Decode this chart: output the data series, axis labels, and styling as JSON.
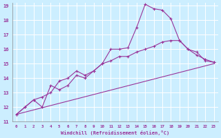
{
  "background_color": "#cceeff",
  "grid_color": "#aaddcc",
  "line_color": "#993399",
  "marker_color": "#993399",
  "xlabel": "Windchill (Refroidissement éolien,°C)",
  "xlim": [
    -0.5,
    23.5
  ],
  "ylim": [
    11,
    19.2
  ],
  "yticks": [
    11,
    12,
    13,
    14,
    15,
    16,
    17,
    18,
    19
  ],
  "xticks": [
    0,
    1,
    2,
    3,
    4,
    5,
    6,
    7,
    8,
    9,
    10,
    11,
    12,
    13,
    14,
    15,
    16,
    17,
    18,
    19,
    20,
    21,
    22,
    23
  ],
  "series": [
    {
      "x": [
        0,
        1,
        2,
        3,
        4,
        5,
        6,
        7,
        8,
        9,
        10,
        11,
        12,
        13,
        14,
        15,
        16,
        17,
        18,
        19,
        20,
        21,
        22,
        23
      ],
      "y": [
        11.5,
        12.0,
        12.5,
        12.0,
        13.5,
        13.2,
        13.5,
        14.2,
        14.0,
        14.5,
        15.0,
        16.0,
        16.0,
        16.1,
        17.5,
        19.1,
        18.8,
        18.7,
        18.1,
        16.6,
        16.0,
        15.8,
        15.2,
        15.1
      ],
      "marker": true
    },
    {
      "x": [
        0,
        1,
        2,
        3,
        4,
        5,
        6,
        7,
        8,
        9,
        10,
        11,
        12,
        13,
        14,
        15,
        16,
        17,
        18,
        19,
        20,
        21,
        22,
        23
      ],
      "y": [
        11.5,
        12.0,
        12.5,
        12.7,
        13.0,
        13.8,
        14.0,
        14.5,
        14.2,
        14.5,
        15.0,
        15.2,
        15.5,
        15.5,
        15.8,
        16.0,
        16.2,
        16.5,
        16.6,
        16.6,
        16.0,
        15.6,
        15.3,
        15.1
      ],
      "marker": true
    },
    {
      "x": [
        0,
        23
      ],
      "y": [
        11.5,
        15.0
      ],
      "marker": false
    }
  ]
}
